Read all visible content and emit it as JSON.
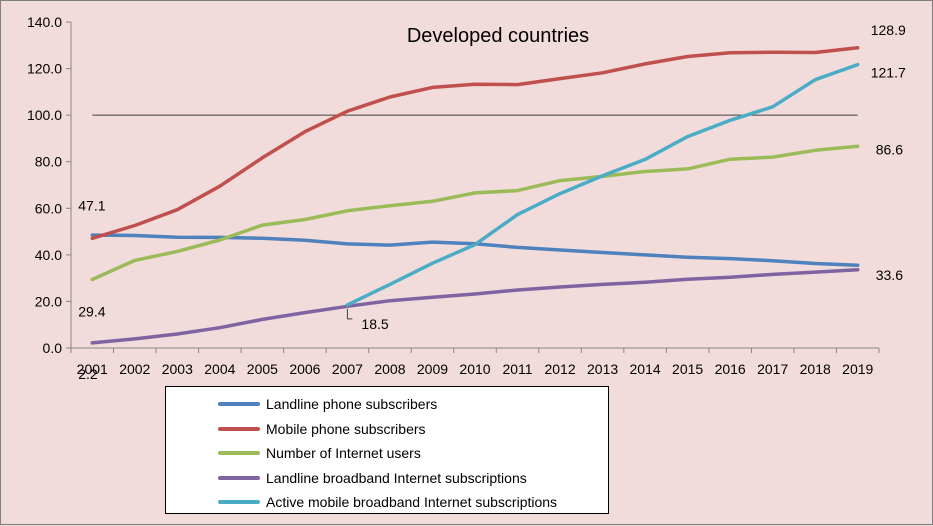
{
  "chart_data": {
    "type": "line",
    "title": "Developed countries",
    "categories": [
      "2001",
      "2002",
      "2003",
      "2004",
      "2005",
      "2006",
      "2007",
      "2008",
      "2009",
      "2010",
      "2011",
      "2012",
      "2013",
      "2014",
      "2015",
      "2016",
      "2017",
      "2018",
      "2019"
    ],
    "ylim": [
      0,
      140
    ],
    "yticks": [
      "0.0",
      "20.0",
      "40.0",
      "60.0",
      "80.0",
      "100.0",
      "120.0",
      "140.0"
    ],
    "reference_line": 100,
    "series": [
      {
        "name": "Landline phone subscribers",
        "color": "#4f81bd",
        "values": [
          48.5,
          48.3,
          47.6,
          47.5,
          47.1,
          46.3,
          44.7,
          44.2,
          45.5,
          44.8,
          43.2,
          42.1,
          41.0,
          40.0,
          39.0,
          38.4,
          37.5,
          36.3,
          35.5
        ]
      },
      {
        "name": "Mobile phone subscribers",
        "color": "#c0504d",
        "values": [
          47.1,
          52.6,
          59.4,
          69.5,
          81.7,
          92.9,
          101.7,
          107.8,
          111.9,
          113.3,
          113.1,
          115.7,
          118.2,
          122.0,
          125.2,
          126.8,
          127.0,
          126.9,
          128.9
        ]
      },
      {
        "name": "Number of Internet users",
        "color": "#9bbb59",
        "values": [
          29.4,
          37.6,
          41.5,
          46.4,
          52.8,
          55.2,
          58.9,
          61.1,
          63.0,
          66.6,
          67.6,
          71.9,
          73.7,
          75.8,
          76.9,
          81.1,
          82.0,
          84.9,
          86.6
        ]
      },
      {
        "name": "Landline broadband Internet subscriptions",
        "color": "#8064a2",
        "values": [
          2.2,
          3.9,
          6.0,
          8.7,
          12.3,
          15.2,
          17.9,
          20.3,
          21.8,
          23.2,
          24.9,
          26.2,
          27.3,
          28.2,
          29.5,
          30.4,
          31.6,
          32.6,
          33.6
        ]
      },
      {
        "name": "Active mobile broadband Internet subscriptions",
        "color": "#4bacc6",
        "values": [
          null,
          null,
          null,
          null,
          null,
          null,
          18.5,
          27.3,
          36.4,
          44.4,
          57.3,
          66.3,
          74.0,
          81.0,
          90.8,
          97.8,
          103.6,
          115.2,
          121.7
        ]
      }
    ],
    "data_labels": [
      {
        "text": "47.1",
        "series": 1,
        "index": 0
      },
      {
        "text": "29.4",
        "series": 2,
        "index": 0
      },
      {
        "text": "2.2",
        "series": 3,
        "index": 0
      },
      {
        "text": "18.5",
        "series": 4,
        "index": 6
      },
      {
        "text": "128.9",
        "series": 1,
        "index": 18
      },
      {
        "text": "121.7",
        "series": 4,
        "index": 18
      },
      {
        "text": "86.6",
        "series": 2,
        "index": 18
      },
      {
        "text": "33.6",
        "series": 3,
        "index": 18
      }
    ],
    "legend_position": "bottom"
  }
}
